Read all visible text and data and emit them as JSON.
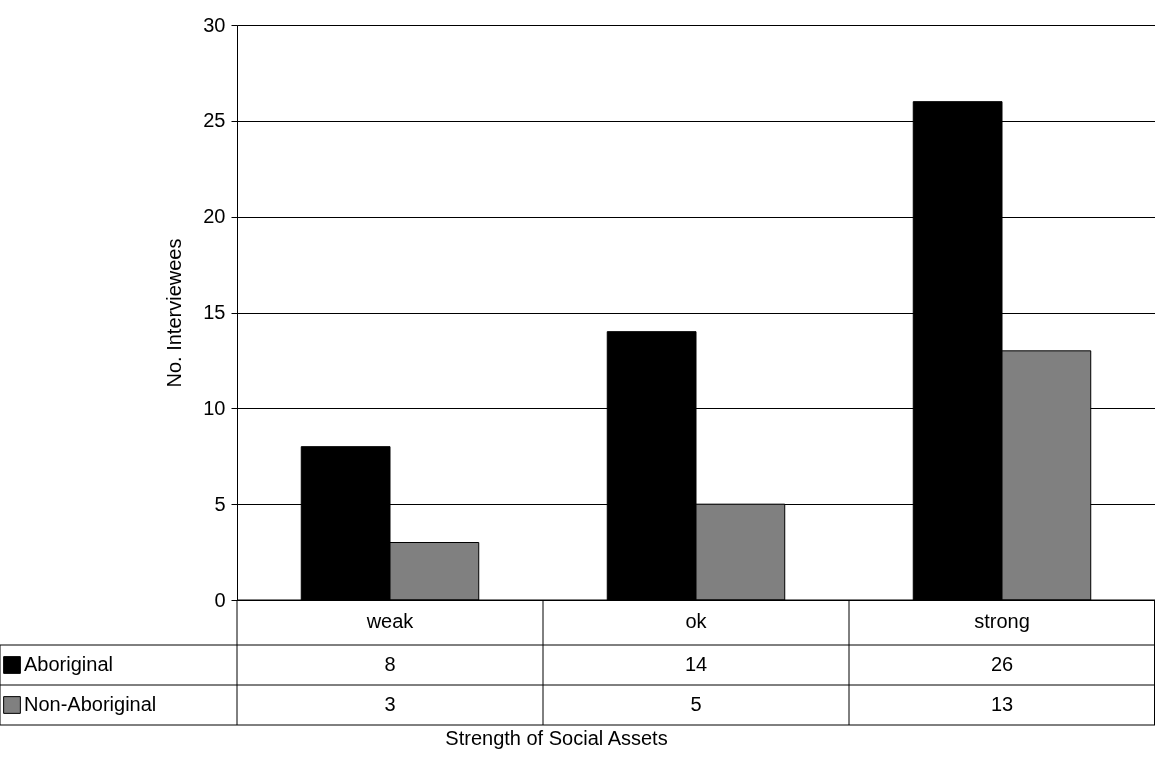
{
  "chart_data": {
    "type": "bar",
    "xlabel": "Strength of Social Assets",
    "ylabel": "No. Interviewees",
    "categories": [
      "weak",
      "ok",
      "strong"
    ],
    "series": [
      {
        "name": "Aboriginal",
        "color": "#000000",
        "values": [
          8,
          14,
          26
        ]
      },
      {
        "name": "Non-Aboriginal",
        "color": "#808080",
        "values": [
          3,
          5,
          13
        ]
      }
    ],
    "ylim": [
      0,
      30
    ],
    "yticks": [
      0,
      5,
      10,
      15,
      20,
      25,
      30
    ],
    "grid": "y",
    "legend": "bottom",
    "data_labels": true
  }
}
